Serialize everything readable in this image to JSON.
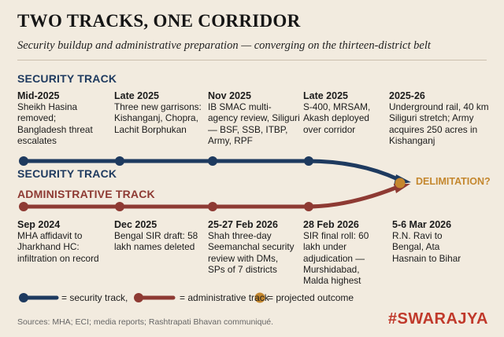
{
  "title": "TWO TRACKS, ONE CORRIDOR",
  "subtitle": "Security buildup and administrative preparation — converging on the thirteen-district belt",
  "colors": {
    "security": "#1e3a5f",
    "administrative": "#8e3a33",
    "outcome": "#c4872e",
    "background": "#f2ebdf"
  },
  "security_track": {
    "heading": "SECURITY TRACK",
    "line_label": "SECURITY TRACK",
    "events": [
      {
        "date": "Mid-2025",
        "text": "Sheikh Hasina removed; Bangladesh threat escalates"
      },
      {
        "date": "Late 2025",
        "text": "Three new garrisons: Kishanganj, Chopra, Lachit Borphukan"
      },
      {
        "date": "Nov 2025",
        "text": "IB SMAC multi-agency review, Siliguri — BSF, SSB, ITBP, Army, RPF"
      },
      {
        "date": "Late 2025",
        "text": "S-400, MRSAM, Akash deployed over corridor"
      },
      {
        "date": "2025-26",
        "text": "Underground rail, 40 km Siliguri stretch; Army acquires 250 acres in Kishanganj"
      }
    ]
  },
  "administrative_track": {
    "line_label": "ADMINISTRATIVE TRACK",
    "events": [
      {
        "date": "Sep 2024",
        "text": "MHA affidavit to Jharkhand HC: infiltration on record"
      },
      {
        "date": "Dec 2025",
        "text": "Bengal SIR draft: 58 lakh names deleted"
      },
      {
        "date": "25-27 Feb 2026",
        "text": "Shah three-day Seemanchal security review with DMs, SPs of 7 districts"
      },
      {
        "date": "28 Feb 2026",
        "text": "SIR final roll: 60 lakh under adjudication — Murshidabad, Malda highest"
      },
      {
        "date": "5-6 Mar 2026",
        "text": "R.N. Ravi to Bengal, Ata Hasnain to Bihar"
      }
    ]
  },
  "outcome": {
    "label": "DELIMITATION?"
  },
  "legend": {
    "security": "= security track,",
    "administrative": "= administrative track",
    "outcome": "= projected outcome"
  },
  "sources": "Sources: MHA; ECI; media reports; Rashtrapati Bhavan communiqué.",
  "brand": "#SWARAJYA"
}
